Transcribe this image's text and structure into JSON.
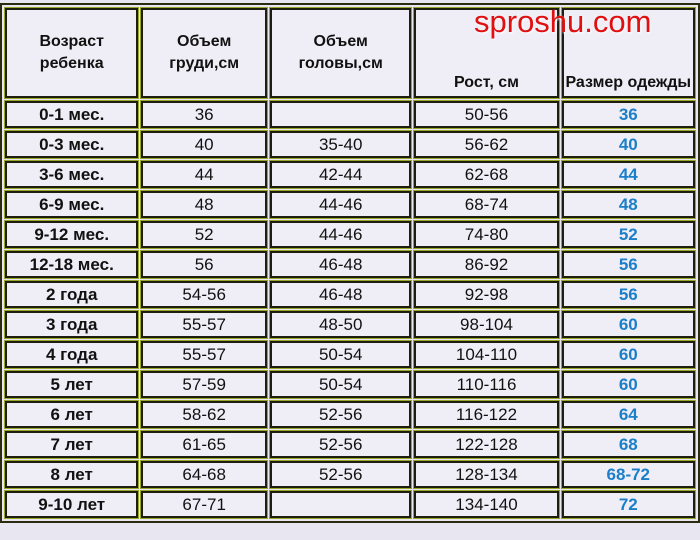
{
  "watermark": "sproshu.com",
  "headers": [
    "Возраст ребенка",
    "Объем груди,см",
    "Объем головы,см",
    "Рост, см",
    "Размер одежды"
  ],
  "rows": [
    [
      "0-1 мес.",
      "36",
      "",
      "50-56",
      "36"
    ],
    [
      "0-3 мес.",
      "40",
      "35-40",
      "56-62",
      "40"
    ],
    [
      "3-6 мес.",
      "44",
      "42-44",
      "62-68",
      "44"
    ],
    [
      "6-9 мес.",
      "48",
      "44-46",
      "68-74",
      "48"
    ],
    [
      "9-12 мес.",
      "52",
      "44-46",
      "74-80",
      "52"
    ],
    [
      "12-18 мес.",
      "56",
      "46-48",
      "86-92",
      "56"
    ],
    [
      "2 года",
      "54-56",
      "46-48",
      "92-98",
      "56"
    ],
    [
      "3 года",
      "55-57",
      "48-50",
      "98-104",
      "60"
    ],
    [
      "4 года",
      "55-57",
      "50-54",
      "104-110",
      "60"
    ],
    [
      "5 лет",
      "57-59",
      "50-54",
      "110-116",
      "60"
    ],
    [
      "6 лет",
      "58-62",
      "52-56",
      "116-122",
      "64"
    ],
    [
      "7 лет",
      "61-65",
      "52-56",
      "122-128",
      "68"
    ],
    [
      "8 лет",
      "64-68",
      "52-56",
      "128-134",
      "68-72"
    ],
    [
      "9-10 лет",
      "67-71",
      "",
      "134-140",
      "72"
    ]
  ],
  "colors": {
    "size_text": "#1a7fc8",
    "cell_bg": "#efeef7",
    "watermark": "#e01010"
  }
}
